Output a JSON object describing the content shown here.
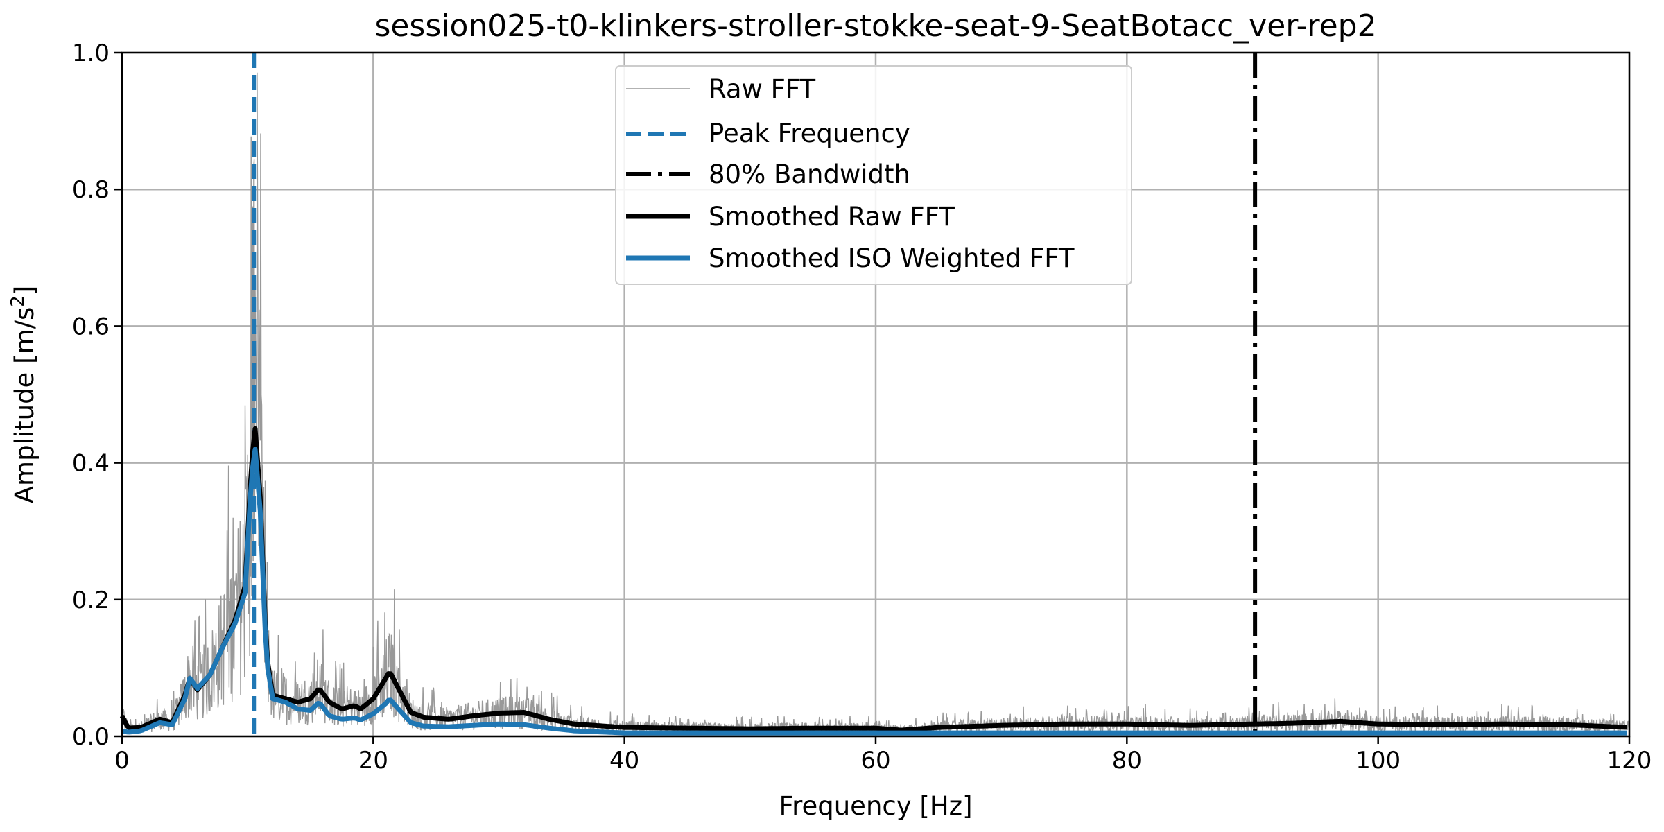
{
  "chart_data": {
    "type": "line",
    "title": "session025-t0-klinkers-stroller-stokke-seat-9-SeatBotacc_ver-rep2",
    "xlabel": "Frequency [Hz]",
    "ylabel": "Amplitude [m/s²]",
    "ylabel_base": "Amplitude [m/s",
    "ylabel_sup": "2",
    "ylabel_end": "]",
    "xlim": [
      0,
      120
    ],
    "ylim": [
      0,
      1.0
    ],
    "grid": true,
    "legend_position": "top-center",
    "xticks": [
      0,
      20,
      40,
      60,
      80,
      100,
      120
    ],
    "xtick_labels": [
      "0",
      "20",
      "40",
      "60",
      "80",
      "100",
      "120"
    ],
    "yticks": [
      0,
      0.2,
      0.4,
      0.6,
      0.8,
      1.0
    ],
    "ytick_labels": [
      "0.0",
      "0.2",
      "0.4",
      "0.6",
      "0.8",
      "1.0"
    ],
    "legend": [
      "Raw FFT",
      "Peak Frequency",
      "80% Bandwidth",
      "Smoothed Raw FFT",
      "Smoothed ISO Weighted FFT"
    ],
    "peak_frequency": 10.5,
    "bandwidth_80": 90.2,
    "colors": {
      "raw": "#999999",
      "peak": "#1f77b4",
      "bandwidth": "#000000",
      "smoothed": "#000000",
      "iso": "#1f77b4"
    },
    "series": [
      {
        "name": "Smoothed Raw FFT",
        "x": [
          0,
          0.5,
          1.5,
          3,
          4,
          5,
          5.4,
          6,
          7,
          8,
          9,
          9.8,
          10.3,
          10.6,
          11,
          11.5,
          12,
          13,
          14,
          15,
          15.7,
          16.5,
          17.5,
          18.5,
          19,
          20,
          21,
          21.3,
          22,
          23,
          24,
          26,
          28,
          30,
          32,
          34,
          36,
          40,
          45,
          50,
          55,
          60,
          62,
          65,
          70,
          75,
          80,
          85,
          90,
          93,
          97,
          100,
          105,
          110,
          115,
          120
        ],
        "y": [
          0.03,
          0.012,
          0.013,
          0.025,
          0.02,
          0.06,
          0.085,
          0.068,
          0.09,
          0.13,
          0.17,
          0.22,
          0.4,
          0.45,
          0.35,
          0.12,
          0.06,
          0.055,
          0.05,
          0.055,
          0.07,
          0.05,
          0.04,
          0.045,
          0.04,
          0.055,
          0.085,
          0.095,
          0.07,
          0.035,
          0.028,
          0.025,
          0.03,
          0.034,
          0.035,
          0.025,
          0.018,
          0.013,
          0.012,
          0.011,
          0.012,
          0.012,
          0.009,
          0.013,
          0.016,
          0.018,
          0.018,
          0.016,
          0.018,
          0.019,
          0.022,
          0.018,
          0.017,
          0.018,
          0.017,
          0.013
        ]
      },
      {
        "name": "Smoothed ISO Weighted FFT",
        "x": [
          0,
          0.5,
          1.5,
          3,
          4,
          5,
          5.4,
          6,
          7,
          8,
          9,
          9.8,
          10.3,
          10.6,
          11,
          11.5,
          12,
          13,
          14,
          15,
          15.7,
          16.5,
          17.5,
          18.5,
          19,
          20,
          21,
          21.3,
          22,
          23,
          24,
          26,
          28,
          30,
          32,
          34,
          36,
          40,
          50,
          60,
          80,
          100,
          120
        ],
        "y": [
          0.008,
          0.006,
          0.008,
          0.02,
          0.017,
          0.055,
          0.085,
          0.07,
          0.09,
          0.13,
          0.165,
          0.21,
          0.38,
          0.42,
          0.33,
          0.11,
          0.055,
          0.05,
          0.04,
          0.038,
          0.05,
          0.03,
          0.025,
          0.027,
          0.024,
          0.033,
          0.048,
          0.055,
          0.04,
          0.02,
          0.015,
          0.014,
          0.016,
          0.018,
          0.017,
          0.012,
          0.008,
          0.005,
          0.005,
          0.005,
          0.005,
          0.005,
          0.005
        ]
      }
    ]
  }
}
